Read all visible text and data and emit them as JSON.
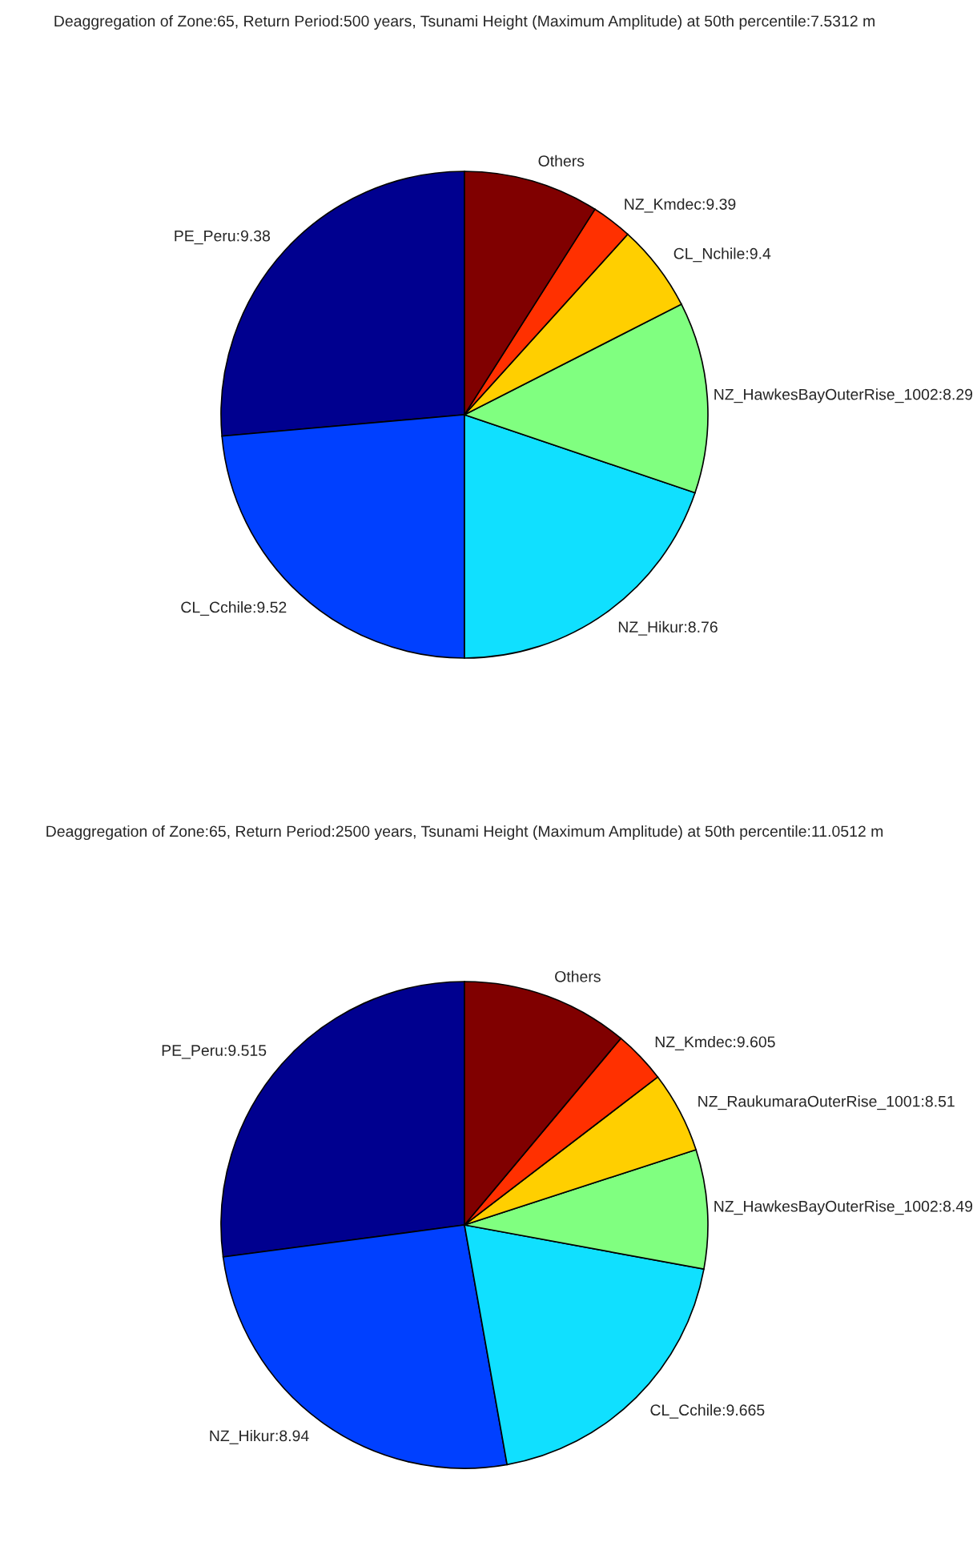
{
  "chart_data": [
    {
      "type": "pie",
      "title": "Deaggregation of Zone:65, Return Period:500 years, Tsunami Height (Maximum Amplitude) at 50th percentile:7.5312 m",
      "categories": [
        "PE_Peru:9.38",
        "CL_Cchile:9.52",
        "NZ_Hikur:8.76",
        "NZ_HawkesBayOuterRise_1002:8.29",
        "CL_Nchile:9.4",
        "NZ_Kmdec:9.39",
        "Others"
      ],
      "values": [
        26.4,
        23.6,
        19.8,
        12.7,
        5.8,
        2.7,
        9.0
      ],
      "colors": [
        "#00008f",
        "#0040ff",
        "#10e0ff",
        "#80ff80",
        "#ffcf00",
        "#ff3000",
        "#800000"
      ]
    },
    {
      "type": "pie",
      "title": "Deaggregation of Zone:65, Return Period:2500 years, Tsunami Height (Maximum Amplitude) at 50th percentile:11.0512 m",
      "categories": [
        "PE_Peru:9.515",
        "NZ_Hikur:8.94",
        "CL_Cchile:9.665",
        "NZ_HawkesBayOuterRise_1002:8.49",
        "NZ_RaukumaraOuterRise_1001:8.51",
        "NZ_Kmdec:9.605",
        "Others"
      ],
      "values": [
        27.1,
        25.7,
        19.3,
        7.9,
        5.4,
        3.5,
        11.1
      ],
      "colors": [
        "#00008f",
        "#0040ff",
        "#10e0ff",
        "#80ff80",
        "#ffcf00",
        "#ff3000",
        "#800000"
      ]
    }
  ]
}
